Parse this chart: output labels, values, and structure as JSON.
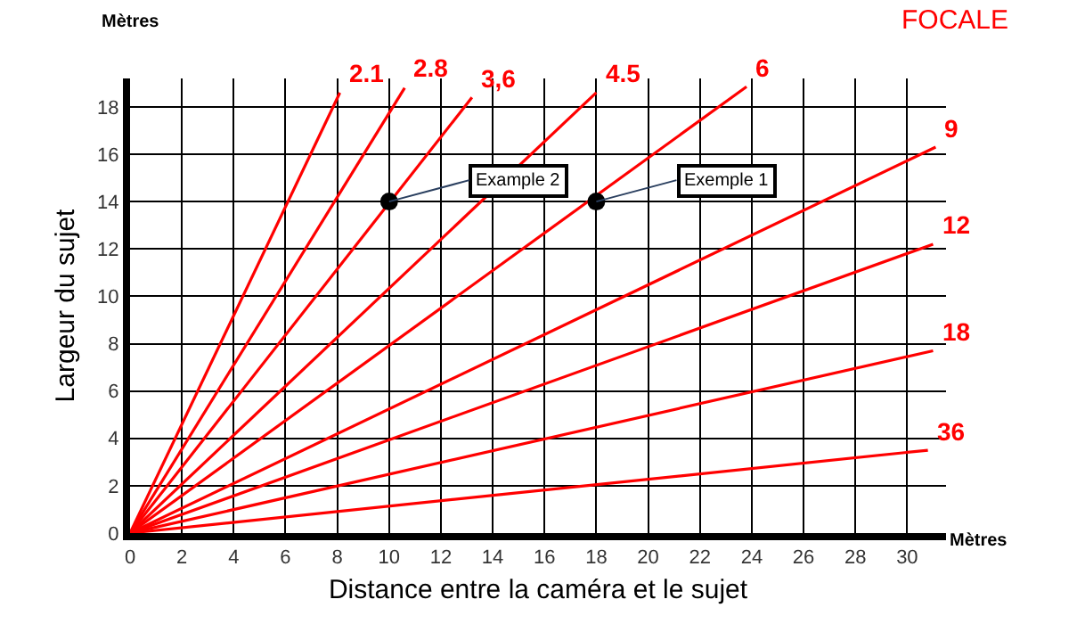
{
  "chart_data": {
    "type": "line",
    "xlabel": "Distance entre la caméra et le sujet",
    "ylabel": "Largeur du sujet",
    "legend_title": "FOCALE",
    "xlim": [
      0,
      31.5
    ],
    "ylim": [
      0,
      19.2
    ],
    "xticks": [
      0,
      2,
      4,
      6,
      8,
      10,
      12,
      14,
      16,
      18,
      20,
      22,
      24,
      26,
      28,
      30
    ],
    "yticks": [
      0,
      2,
      4,
      6,
      8,
      10,
      12,
      14,
      16,
      18
    ],
    "grid": true,
    "legend": false,
    "marker": "none",
    "series": [
      {
        "name": "2.1",
        "color": "#ff0000",
        "x": [
          0,
          8.1
        ],
        "values": [
          0,
          18.6
        ]
      },
      {
        "name": "2.8",
        "color": "#ff0000",
        "x": [
          0,
          10.6
        ],
        "values": [
          0,
          18.8
        ]
      },
      {
        "name": "3,6",
        "color": "#ff0000",
        "x": [
          0,
          13.2
        ],
        "values": [
          0,
          18.4
        ]
      },
      {
        "name": "4.5",
        "color": "#ff0000",
        "x": [
          0,
          18.0
        ],
        "values": [
          0,
          18.6
        ]
      },
      {
        "name": "6",
        "color": "#ff0000",
        "x": [
          0,
          23.8
        ],
        "values": [
          0,
          18.85
        ]
      },
      {
        "name": "9",
        "color": "#ff0000",
        "x": [
          0,
          31.1
        ],
        "values": [
          0,
          16.3
        ]
      },
      {
        "name": "12",
        "color": "#ff0000",
        "x": [
          0,
          31.0
        ],
        "values": [
          0,
          12.2
        ]
      },
      {
        "name": "18",
        "color": "#ff0000",
        "x": [
          0,
          31.0
        ],
        "values": [
          0,
          7.7
        ]
      },
      {
        "name": "36",
        "color": "#ff0000",
        "x": [
          0,
          30.8
        ],
        "values": [
          0,
          3.5
        ]
      },
      {
        "type": "scatter",
        "marker": "circle",
        "color": "#000000",
        "x": [
          10,
          18
        ],
        "values": [
          14,
          14
        ]
      }
    ],
    "annotations": [
      "Mètres",
      "Mètres",
      {
        "text": "Example 2",
        "x": 10,
        "y": 14
      },
      {
        "text": "Exemple 1",
        "x": 18,
        "y": 14
      }
    ]
  }
}
